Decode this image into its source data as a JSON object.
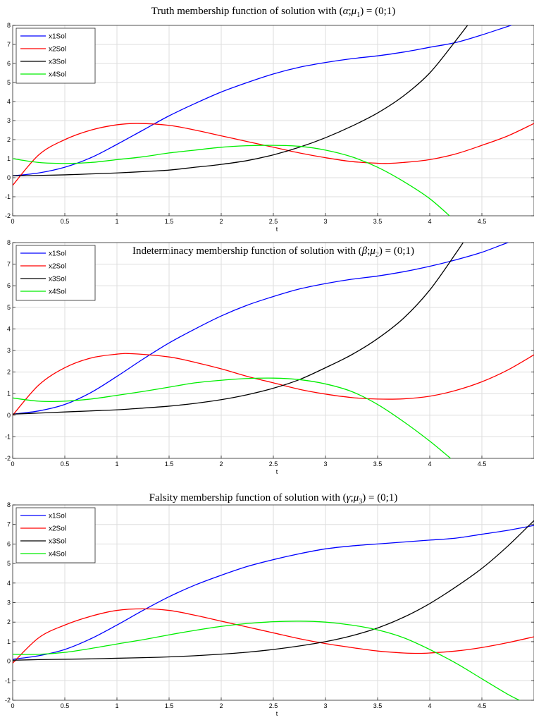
{
  "chart_data": [
    {
      "type": "line",
      "title_prefix": "Truth membership function of solution with (",
      "title_greek": "α",
      "title_mu_index": "1",
      "title_suffix": ") = (0;1)",
      "xlabel": "t",
      "ylabel": "",
      "xlim": [
        0,
        5
      ],
      "ylim": [
        -2,
        8
      ],
      "xticks": [
        0,
        0.5,
        1,
        1.5,
        2,
        2.5,
        3,
        3.5,
        4,
        4.5
      ],
      "yticks": [
        -2,
        -1,
        0,
        1,
        2,
        3,
        4,
        5,
        6,
        7,
        8
      ],
      "grid": true,
      "legend_position": "top-left",
      "series": [
        {
          "name": "x1Sol",
          "color": "#0000ff",
          "x": [
            0,
            0.25,
            0.5,
            0.75,
            1,
            1.25,
            1.5,
            1.75,
            2,
            2.25,
            2.5,
            2.75,
            3,
            3.25,
            3.5,
            3.75,
            4,
            4.25,
            4.5,
            4.75,
            5
          ],
          "y": [
            0.1,
            0.25,
            0.55,
            1.05,
            1.75,
            2.5,
            3.25,
            3.9,
            4.5,
            5.0,
            5.45,
            5.8,
            6.05,
            6.25,
            6.4,
            6.6,
            6.85,
            7.1,
            7.5,
            7.95,
            8.4
          ]
        },
        {
          "name": "x2Sol",
          "color": "#ff0000",
          "x": [
            0,
            0.25,
            0.5,
            0.75,
            1,
            1.2,
            1.5,
            1.75,
            2,
            2.25,
            2.5,
            2.75,
            3,
            3.25,
            3.5,
            3.6,
            3.75,
            4,
            4.25,
            4.5,
            4.75,
            5
          ],
          "y": [
            -0.4,
            1.2,
            2.0,
            2.5,
            2.78,
            2.85,
            2.75,
            2.5,
            2.2,
            1.9,
            1.6,
            1.3,
            1.05,
            0.85,
            0.76,
            0.75,
            0.8,
            0.95,
            1.25,
            1.7,
            2.2,
            2.85
          ]
        },
        {
          "name": "x3Sol",
          "color": "#000000",
          "x": [
            0,
            0.25,
            0.5,
            0.75,
            1,
            1.25,
            1.5,
            1.75,
            2,
            2.25,
            2.5,
            2.75,
            3,
            3.25,
            3.5,
            3.75,
            4,
            4.25,
            4.5
          ],
          "y": [
            0.1,
            0.12,
            0.15,
            0.2,
            0.25,
            0.32,
            0.4,
            0.55,
            0.7,
            0.9,
            1.2,
            1.6,
            2.1,
            2.7,
            3.4,
            4.3,
            5.5,
            7.2,
            9.0
          ]
        },
        {
          "name": "x4Sol",
          "color": "#00ee00",
          "x": [
            0,
            0.25,
            0.5,
            0.75,
            1,
            1.25,
            1.5,
            1.75,
            2,
            2.25,
            2.5,
            2.75,
            3,
            3.25,
            3.5,
            3.75,
            4,
            4.25
          ],
          "y": [
            1.0,
            0.8,
            0.75,
            0.8,
            0.95,
            1.1,
            1.3,
            1.45,
            1.6,
            1.68,
            1.7,
            1.65,
            1.45,
            1.1,
            0.55,
            -0.2,
            -1.1,
            -2.3
          ]
        }
      ]
    },
    {
      "type": "line",
      "title_prefix": "Indeterminacy membership function of solution with (",
      "title_greek": "β",
      "title_mu_index": "2",
      "title_suffix": ") = (0;1)",
      "xlabel": "t",
      "ylabel": "",
      "xlim": [
        0,
        5
      ],
      "ylim": [
        -2,
        8
      ],
      "xticks": [
        0,
        0.5,
        1,
        1.5,
        2,
        2.5,
        3,
        3.5,
        4,
        4.5
      ],
      "yticks": [
        -2,
        -1,
        0,
        1,
        2,
        3,
        4,
        5,
        6,
        7,
        8
      ],
      "grid": true,
      "legend_position": "top-left",
      "series": [
        {
          "name": "x1Sol",
          "color": "#0000ff",
          "x": [
            0,
            0.25,
            0.5,
            0.75,
            1,
            1.25,
            1.5,
            1.75,
            2,
            2.25,
            2.5,
            2.75,
            3,
            3.25,
            3.5,
            3.75,
            4,
            4.25,
            4.5,
            4.75,
            5
          ],
          "y": [
            0.05,
            0.2,
            0.5,
            1.05,
            1.8,
            2.6,
            3.35,
            4.0,
            4.6,
            5.1,
            5.5,
            5.85,
            6.1,
            6.3,
            6.45,
            6.65,
            6.9,
            7.2,
            7.55,
            8.0,
            8.4
          ]
        },
        {
          "name": "x2Sol",
          "color": "#ff0000",
          "x": [
            0,
            0.25,
            0.5,
            0.75,
            1,
            1.15,
            1.5,
            1.75,
            2,
            2.25,
            2.5,
            2.75,
            3,
            3.25,
            3.5,
            3.75,
            4,
            4.25,
            4.5,
            4.75,
            5
          ],
          "y": [
            0.0,
            1.4,
            2.2,
            2.65,
            2.83,
            2.85,
            2.7,
            2.45,
            2.15,
            1.8,
            1.5,
            1.2,
            0.98,
            0.82,
            0.75,
            0.76,
            0.88,
            1.15,
            1.55,
            2.1,
            2.8
          ]
        },
        {
          "name": "x3Sol",
          "color": "#000000",
          "x": [
            0,
            0.25,
            0.5,
            0.75,
            1,
            1.25,
            1.5,
            1.75,
            2,
            2.25,
            2.5,
            2.75,
            3,
            3.25,
            3.5,
            3.75,
            4,
            4.25,
            4.5
          ],
          "y": [
            0.05,
            0.1,
            0.15,
            0.2,
            0.25,
            0.33,
            0.42,
            0.55,
            0.72,
            0.95,
            1.25,
            1.65,
            2.2,
            2.8,
            3.55,
            4.5,
            5.8,
            7.5,
            9.3
          ]
        },
        {
          "name": "x4Sol",
          "color": "#00ee00",
          "x": [
            0,
            0.25,
            0.5,
            0.75,
            1,
            1.25,
            1.5,
            1.75,
            2,
            2.25,
            2.5,
            2.75,
            3,
            3.25,
            3.5,
            3.75,
            4,
            4.2
          ],
          "y": [
            0.8,
            0.65,
            0.65,
            0.75,
            0.92,
            1.1,
            1.3,
            1.5,
            1.62,
            1.7,
            1.72,
            1.65,
            1.45,
            1.1,
            0.5,
            -0.3,
            -1.2,
            -2.0
          ]
        }
      ]
    },
    {
      "type": "line",
      "title_prefix": "Falsity membership function of solution with (",
      "title_greek": "γ",
      "title_mu_index": "3",
      "title_suffix": ") = (0;1)",
      "xlabel": "t",
      "ylabel": "",
      "xlim": [
        0,
        5
      ],
      "ylim": [
        -2,
        8
      ],
      "xticks": [
        0,
        0.5,
        1,
        1.5,
        2,
        2.5,
        3,
        3.5,
        4,
        4.5
      ],
      "yticks": [
        -2,
        -1,
        0,
        1,
        2,
        3,
        4,
        5,
        6,
        7,
        8
      ],
      "grid": true,
      "legend_position": "top-left",
      "series": [
        {
          "name": "x1Sol",
          "color": "#0000ff",
          "x": [
            0,
            0.25,
            0.5,
            0.75,
            1,
            1.25,
            1.5,
            1.75,
            2,
            2.25,
            2.5,
            2.75,
            3,
            3.25,
            3.5,
            3.75,
            4,
            4.25,
            4.5,
            4.75,
            5
          ],
          "y": [
            0.1,
            0.28,
            0.6,
            1.15,
            1.85,
            2.6,
            3.3,
            3.9,
            4.4,
            4.85,
            5.2,
            5.5,
            5.75,
            5.9,
            6.0,
            6.1,
            6.2,
            6.3,
            6.5,
            6.7,
            6.95
          ]
        },
        {
          "name": "x2Sol",
          "color": "#ff0000",
          "x": [
            0,
            0.25,
            0.5,
            0.75,
            1,
            1.25,
            1.5,
            1.75,
            2,
            2.25,
            2.5,
            2.75,
            3,
            3.25,
            3.5,
            3.75,
            3.9,
            4,
            4.25,
            4.5,
            4.75,
            5
          ],
          "y": [
            -0.1,
            1.2,
            1.85,
            2.3,
            2.6,
            2.68,
            2.6,
            2.35,
            2.05,
            1.75,
            1.45,
            1.15,
            0.9,
            0.7,
            0.52,
            0.42,
            0.4,
            0.42,
            0.52,
            0.7,
            0.95,
            1.25
          ]
        },
        {
          "name": "x3Sol",
          "color": "#000000",
          "x": [
            0,
            0.25,
            0.5,
            0.75,
            1,
            1.25,
            1.5,
            1.75,
            2,
            2.25,
            2.5,
            2.75,
            3,
            3.25,
            3.5,
            3.75,
            4,
            4.25,
            4.5,
            4.75,
            5
          ],
          "y": [
            0.05,
            0.08,
            0.1,
            0.12,
            0.15,
            0.18,
            0.22,
            0.28,
            0.36,
            0.46,
            0.6,
            0.78,
            1.0,
            1.3,
            1.7,
            2.25,
            2.95,
            3.8,
            4.75,
            5.9,
            7.2
          ]
        },
        {
          "name": "x4Sol",
          "color": "#00ee00",
          "x": [
            0,
            0.25,
            0.5,
            0.75,
            1,
            1.25,
            1.5,
            1.75,
            2,
            2.25,
            2.5,
            2.75,
            3,
            3.25,
            3.5,
            3.75,
            4,
            4.25,
            4.5,
            4.75,
            4.9
          ],
          "y": [
            0.35,
            0.35,
            0.45,
            0.65,
            0.88,
            1.1,
            1.35,
            1.58,
            1.78,
            1.93,
            2.02,
            2.05,
            2.0,
            1.85,
            1.6,
            1.2,
            0.6,
            -0.1,
            -0.9,
            -1.7,
            -2.1
          ]
        }
      ]
    }
  ]
}
